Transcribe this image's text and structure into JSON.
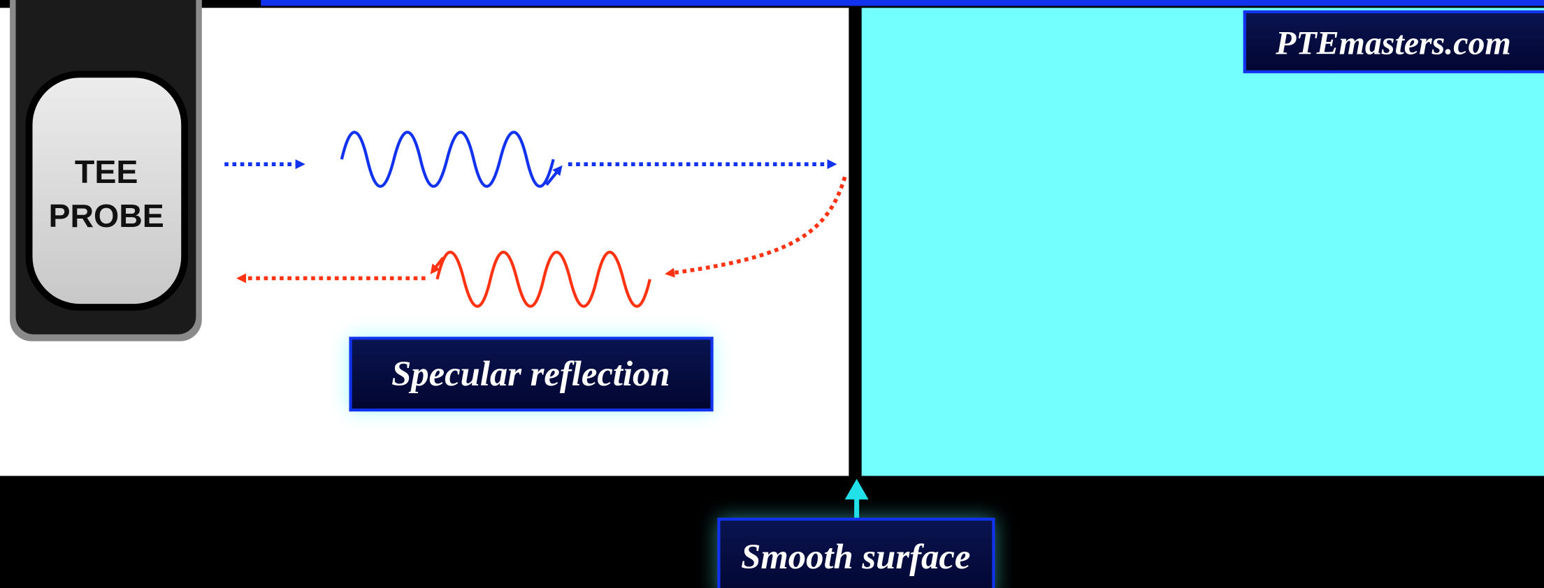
{
  "probe": {
    "label_lines": [
      "TEE",
      "PROBE"
    ]
  },
  "labels": {
    "caption": "Specular reflection",
    "surface": "Smooth surface",
    "watermark": "PTEmasters.com"
  }
}
